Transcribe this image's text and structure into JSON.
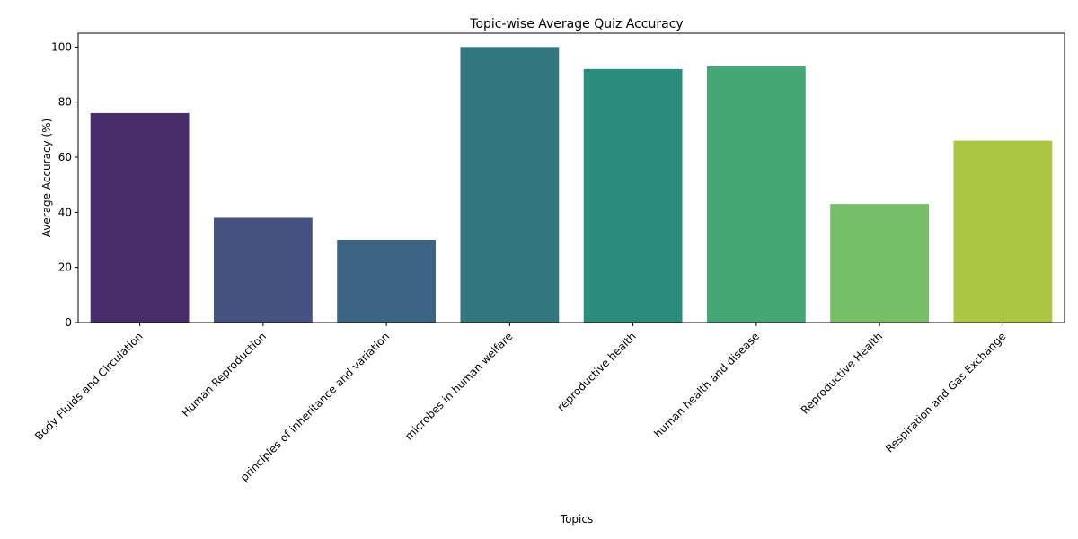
{
  "chart_data": {
    "type": "bar",
    "title": "Topic-wise Average Quiz Accuracy",
    "xlabel": "Topics",
    "ylabel": "Average Accuracy (%)",
    "categories": [
      "Body Fluids and Circulation",
      "Human Reproduction",
      "principles of inheritance and variation",
      "microbes in human welfare",
      "reproductive health",
      "human health and disease",
      "Reproductive Health",
      "Respiration and Gas Exchange"
    ],
    "values": [
      76,
      38,
      30,
      100,
      92,
      93,
      43,
      66
    ],
    "colors": [
      "#482d6b",
      "#45527f",
      "#3b6582",
      "#32767f",
      "#2a8c7c",
      "#45a874",
      "#77bf67",
      "#abc741"
    ],
    "ylim": [
      0,
      105
    ],
    "yticks": [
      0,
      20,
      40,
      60,
      80,
      100
    ],
    "grid": false,
    "legend": "none"
  }
}
